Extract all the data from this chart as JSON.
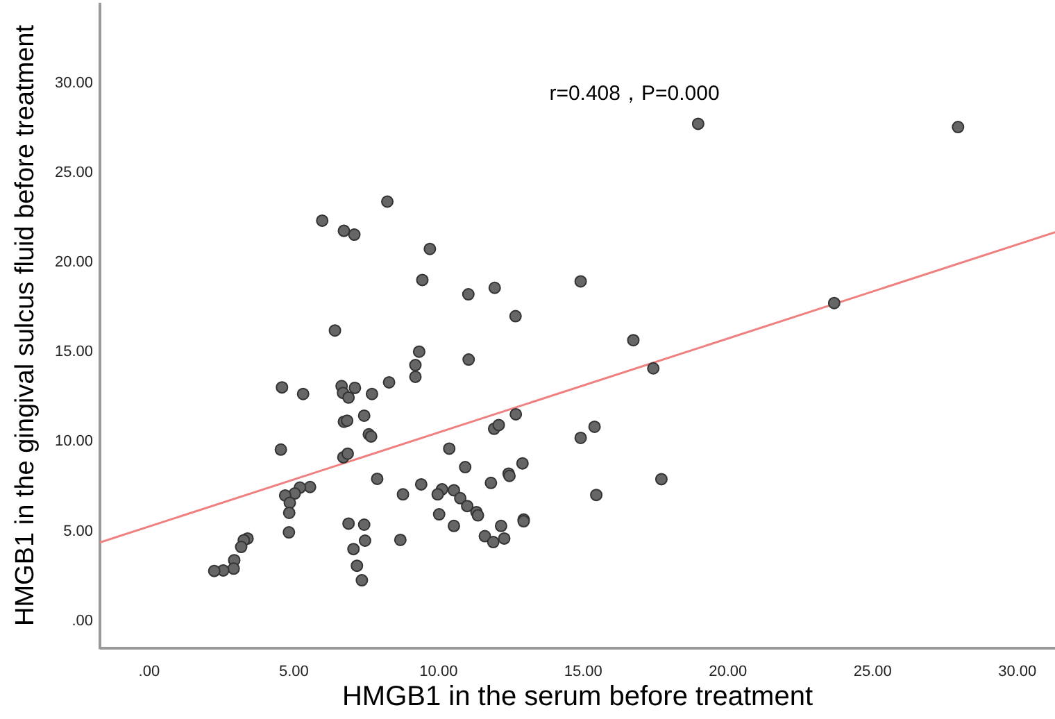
{
  "chart_data": {
    "type": "scatter",
    "xlabel": "HMGB1 in the serum before treatment",
    "ylabel": "HMGB1 in the gingival sulcus fluid before treatment",
    "annotations": [
      "r=0.408，P=0.000"
    ],
    "xlim": [
      -1.7,
      31.3
    ],
    "ylim": [
      -1.6,
      34.4
    ],
    "xticks": [
      {
        "value": 0,
        "label": ".00"
      },
      {
        "value": 5,
        "label": "5.00"
      },
      {
        "value": 10,
        "label": "10.00"
      },
      {
        "value": 15,
        "label": "15.00"
      },
      {
        "value": 20,
        "label": "20.00"
      },
      {
        "value": 25,
        "label": "25.00"
      },
      {
        "value": 30,
        "label": "30.00"
      }
    ],
    "yticks": [
      {
        "value": 0,
        "label": ".00"
      },
      {
        "value": 5,
        "label": "5.00"
      },
      {
        "value": 10,
        "label": "10.00"
      },
      {
        "value": 15,
        "label": "15.00"
      },
      {
        "value": 20,
        "label": "20.00"
      },
      {
        "value": 25,
        "label": "25.00"
      },
      {
        "value": 30,
        "label": "30.00"
      }
    ],
    "grid": false,
    "marker": "circle",
    "series": [
      {
        "color": "#666666",
        "x": [
          5.98,
          6.73,
          7.09,
          8.23,
          9.7,
          9.44,
          11.03,
          11.94,
          12.66,
          6.42,
          9.33,
          9.2,
          11.04,
          14.91,
          9.2,
          4.59,
          5.32,
          6.65,
          6.7,
          6.89,
          7.11,
          7.7,
          8.29,
          7.43,
          6.73,
          6.84,
          7.59,
          7.67,
          12.67,
          11.92,
          12.08,
          14.91,
          4.55,
          10.37,
          10.92,
          6.71,
          6.86,
          12.9,
          12.42,
          12.45,
          11.81,
          7.88,
          9.4,
          10.12,
          9.97,
          10.53,
          10.75,
          10.99,
          8.77,
          5.56,
          5.21,
          5.03,
          4.7,
          4.86,
          4.84,
          4.83,
          11.31,
          11.36,
          10.02,
          12.94,
          12.94,
          6.89,
          7.43,
          10.53,
          12.16,
          7.46,
          8.68,
          11.6,
          11.89,
          12.27,
          7.06,
          7.18,
          7.35,
          3.4,
          3.27,
          3.18,
          2.94,
          2.92,
          2.56,
          2.25,
          18.97,
          27.95,
          23.67,
          16.73,
          17.42,
          15.39,
          17.7,
          15.45
        ],
        "values": [
          22.25,
          21.68,
          21.47,
          23.31,
          20.67,
          18.94,
          18.14,
          18.5,
          16.92,
          16.12,
          14.94,
          14.19,
          14.5,
          18.86,
          13.54,
          12.95,
          12.58,
          13.02,
          12.64,
          12.38,
          12.92,
          12.58,
          13.23,
          11.37,
          11.03,
          11.09,
          10.33,
          10.21,
          11.45,
          10.64,
          10.85,
          10.13,
          9.48,
          9.53,
          8.5,
          9.05,
          9.25,
          8.71,
          8.14,
          8.01,
          7.62,
          7.85,
          7.54,
          7.26,
          6.98,
          7.21,
          6.77,
          6.33,
          6.98,
          7.39,
          7.36,
          7.03,
          6.92,
          6.51,
          5.95,
          4.86,
          5.99,
          5.81,
          5.87,
          5.58,
          5.48,
          5.35,
          5.29,
          5.22,
          5.22,
          4.4,
          4.44,
          4.65,
          4.32,
          4.52,
          3.93,
          3.0,
          2.19,
          4.52,
          4.42,
          4.05,
          3.31,
          2.84,
          2.74,
          2.71,
          27.65,
          27.47,
          17.65,
          15.58,
          14.01,
          10.75,
          7.83,
          6.95
        ]
      },
      {
        "type": "line",
        "color": "#f08080",
        "marker": "none",
        "x": [
          -1.7,
          31.3
        ],
        "values": [
          4.3,
          21.6
        ]
      }
    ]
  }
}
